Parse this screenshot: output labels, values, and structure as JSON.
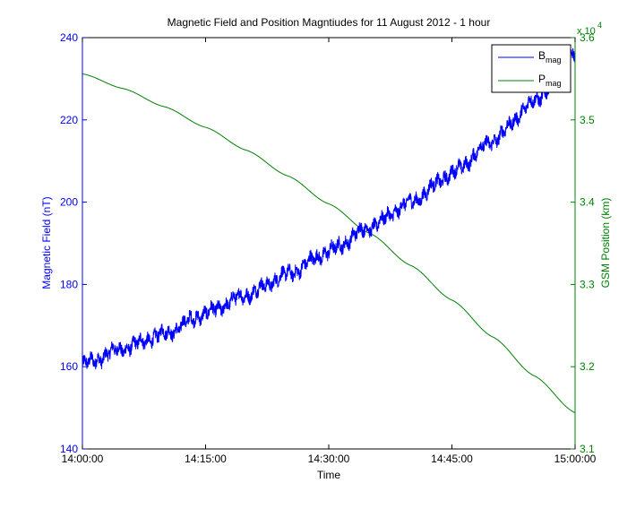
{
  "chart_data": {
    "type": "line",
    "title": "Magnetic Field and Position Magntiudes for 11 August 2012 - 1 hour",
    "xlabel": "Time",
    "ylabel_left": "Magnetic Field (nT)",
    "ylabel_right": "GSM Position (km)",
    "right_exponent_base": "x 10",
    "right_exponent_power": "4",
    "x_ticks": [
      "14:00:00",
      "14:15:00",
      "14:30:00",
      "14:45:00",
      "15:00:00"
    ],
    "x_tick_minutes": [
      0,
      15,
      30,
      45,
      60
    ],
    "y_left_ticks": [
      "140",
      "160",
      "180",
      "200",
      "220",
      "240"
    ],
    "y_left_tick_values": [
      140,
      160,
      180,
      200,
      220,
      240
    ],
    "ylim_left": [
      140,
      240
    ],
    "y_right_ticks": [
      "3.1",
      "3.2",
      "3.3",
      "3.4",
      "3.5",
      "3.6"
    ],
    "y_right_tick_values": [
      3.1,
      3.2,
      3.3,
      3.4,
      3.5,
      3.6
    ],
    "ylim_right": [
      3.1,
      3.6
    ],
    "xlim_minutes": [
      0,
      60
    ],
    "grid": false,
    "legend": "top-right",
    "series": [
      {
        "name": "B",
        "name_sub": "mag",
        "axis": "left",
        "color": "#0000ff",
        "x": [
          0,
          5,
          10,
          15,
          20,
          25,
          30,
          35,
          40,
          45,
          50,
          55,
          60
        ],
        "values": [
          160.5,
          164.5,
          168,
          173,
          177.5,
          182.5,
          188,
          194,
          200,
          207,
          215,
          224.5,
          236
        ],
        "noise_amplitude": 1.5
      },
      {
        "name": "P",
        "name_sub": "mag",
        "axis": "right",
        "color": "#008000",
        "x": [
          0,
          5,
          10,
          15,
          20,
          25,
          30,
          35,
          40,
          45,
          50,
          55,
          60
        ],
        "values": [
          3.556,
          3.538,
          3.516,
          3.491,
          3.463,
          3.432,
          3.398,
          3.362,
          3.323,
          3.281,
          3.236,
          3.189,
          3.144
        ]
      }
    ]
  }
}
